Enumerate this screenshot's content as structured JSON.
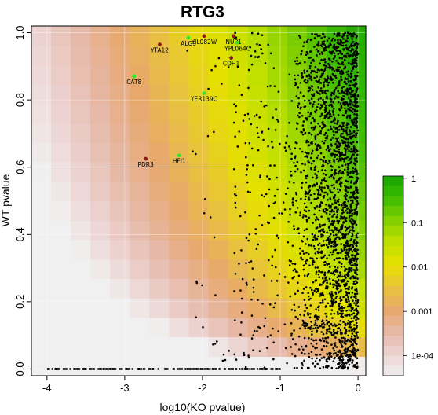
{
  "chart_data": {
    "type": "heatmap",
    "title": "RTG3",
    "xlabel": "log10(KO pvalue)",
    "ylabel": "WT pvalue",
    "xlim": [
      -4.2,
      0.1
    ],
    "ylim": [
      -0.02,
      1.02
    ],
    "x_ticks": [
      {
        "value": -4,
        "label": "-4"
      },
      {
        "value": -3,
        "label": "-3"
      },
      {
        "value": -2,
        "label": "-2"
      },
      {
        "value": -1,
        "label": "-1"
      },
      {
        "value": 0,
        "label": "0"
      }
    ],
    "y_ticks": [
      {
        "value": 0.0,
        "label": "0.0"
      },
      {
        "value": 0.2,
        "label": "0.2"
      },
      {
        "value": 0.4,
        "label": "0.4"
      },
      {
        "value": 0.6,
        "label": "0.6"
      },
      {
        "value": 0.8,
        "label": "0.8"
      },
      {
        "value": 1.0,
        "label": "1.0"
      }
    ],
    "grid": true,
    "legend": {
      "placement": "right",
      "scale": "log",
      "labels": [
        {
          "value": 1,
          "label": "1"
        },
        {
          "value": 0.1,
          "label": "0.1"
        },
        {
          "value": 0.01,
          "label": "0.01"
        },
        {
          "value": 0.001,
          "label": "0.001"
        },
        {
          "value": 0.0001,
          "label": "1e-04"
        }
      ]
    },
    "colors": {
      "scale": [
        "#f0f0f0",
        "#ecd2d0",
        "#e6b7a4",
        "#e8a86c",
        "#e8c43a",
        "#e6e000",
        "#c0e000",
        "#84d000",
        "#3cbc00",
        "#14a400"
      ],
      "highlight_red": "#8b1a1a",
      "highlight_green": "#2ee82e",
      "points": "#000000"
    },
    "labeled_genes": [
      {
        "label": "YTA12",
        "x": -2.55,
        "y": 0.965,
        "color": "red"
      },
      {
        "label": "ALG9",
        "x": -2.18,
        "y": 0.985,
        "color": "green"
      },
      {
        "label": "YIL082W",
        "x": -1.98,
        "y": 0.99,
        "color": "red"
      },
      {
        "label": "NUP1",
        "x": -1.6,
        "y": 0.99,
        "color": "red"
      },
      {
        "label": "YPL064C",
        "x": -1.55,
        "y": 0.97,
        "color": "green"
      },
      {
        "label": "CDH1",
        "x": -1.63,
        "y": 0.925,
        "color": "red"
      },
      {
        "label": "CAT8",
        "x": -2.88,
        "y": 0.87,
        "color": "green"
      },
      {
        "label": "YER139C",
        "x": -1.98,
        "y": 0.82,
        "color": "green"
      },
      {
        "label": "PDR3",
        "x": -2.73,
        "y": 0.625,
        "color": "red"
      },
      {
        "label": "HFI1",
        "x": -2.3,
        "y": 0.635,
        "color": "green"
      }
    ],
    "point_density": {
      "description_free": true,
      "bands": [
        {
          "x_from": -1.0,
          "x_to": 0.0,
          "count": 2400
        },
        {
          "x_from": -1.6,
          "x_to": -1.0,
          "count": 180
        },
        {
          "x_from": -2.2,
          "x_to": -1.6,
          "count": 28
        },
        {
          "x_from": -4.0,
          "x_to": -1.0,
          "count": 170,
          "y_fixed": 0.0
        }
      ]
    }
  }
}
